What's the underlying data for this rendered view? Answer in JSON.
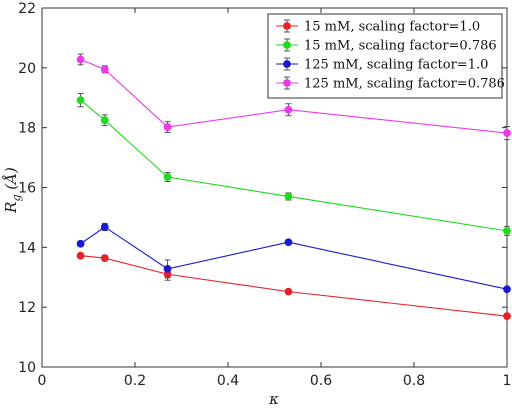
{
  "chart_data": {
    "type": "line",
    "xlabel": "κ",
    "ylabel": "R_g (Å)",
    "xlim": [
      0,
      1
    ],
    "ylim": [
      10,
      22
    ],
    "x_ticks": [
      "0",
      "0.2",
      "0.4",
      "0.6",
      "0.8",
      "1"
    ],
    "y_ticks": [
      "10",
      "12",
      "14",
      "16",
      "18",
      "20",
      "22"
    ],
    "grid": false,
    "legend_position": "top-right",
    "x": [
      0.083,
      0.135,
      0.27,
      0.53,
      1.0
    ],
    "series": [
      {
        "name": "15 mM, scaling factor=1.0",
        "color": "#e8202a",
        "values": [
          13.72,
          13.64,
          13.1,
          12.52,
          11.7
        ],
        "errors": [
          0.08,
          0.08,
          0.2,
          0.06,
          0.06
        ]
      },
      {
        "name": "15 mM, scaling factor=0.786",
        "color": "#1fd81f",
        "values": [
          18.92,
          18.25,
          16.35,
          15.7,
          14.55
        ],
        "errors": [
          0.22,
          0.18,
          0.15,
          0.12,
          0.15
        ]
      },
      {
        "name": "125 mM, scaling factor=1.0",
        "color": "#1a1acc",
        "values": [
          14.12,
          14.68,
          13.28,
          14.17,
          12.6
        ],
        "errors": [
          0.08,
          0.12,
          0.3,
          0.06,
          0.06
        ]
      },
      {
        "name": "125 mM, scaling factor=0.786",
        "color": "#e83ce8",
        "values": [
          20.28,
          19.95,
          18.02,
          18.6,
          17.82
        ],
        "errors": [
          0.18,
          0.12,
          0.18,
          0.2,
          0.22
        ]
      }
    ]
  }
}
